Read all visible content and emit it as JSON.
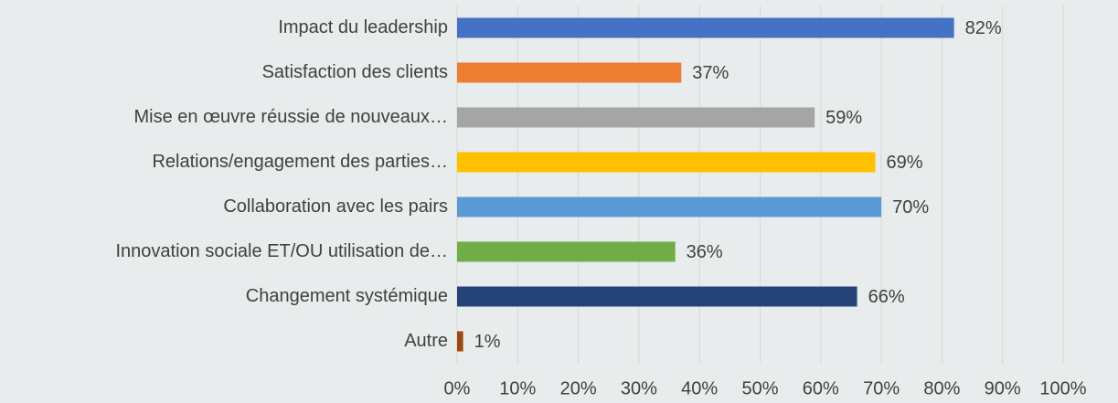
{
  "chart_data": {
    "type": "bar",
    "orientation": "horizontal",
    "categories": [
      "Impact du leadership",
      "Satisfaction des clients",
      "Mise en œuvre réussie de nouveaux…",
      "Relations/engagement des parties…",
      "Collaboration avec les pairs",
      "Innovation sociale ET/OU utilisation de…",
      "Changement systémique",
      "Autre"
    ],
    "values": [
      82,
      37,
      59,
      69,
      70,
      36,
      66,
      1
    ],
    "value_labels": [
      "82%",
      "37%",
      "59%",
      "69%",
      "70%",
      "36%",
      "66%",
      "1%"
    ],
    "colors": [
      "#4472c4",
      "#ed7d31",
      "#a5a5a5",
      "#ffc000",
      "#5b9bd5",
      "#70ad47",
      "#264478",
      "#9e480e"
    ],
    "xlim": [
      0,
      100
    ],
    "xticks": [
      {
        "value": 0,
        "label": "0%"
      },
      {
        "value": 10,
        "label": "10%"
      },
      {
        "value": 20,
        "label": "20%"
      },
      {
        "value": 30,
        "label": "30%"
      },
      {
        "value": 40,
        "label": "40%"
      },
      {
        "value": 50,
        "label": "50%"
      },
      {
        "value": 60,
        "label": "60%"
      },
      {
        "value": 70,
        "label": "70%"
      },
      {
        "value": 80,
        "label": "80%"
      },
      {
        "value": 90,
        "label": "90%"
      },
      {
        "value": 100,
        "label": "100%"
      }
    ],
    "grid": true
  }
}
